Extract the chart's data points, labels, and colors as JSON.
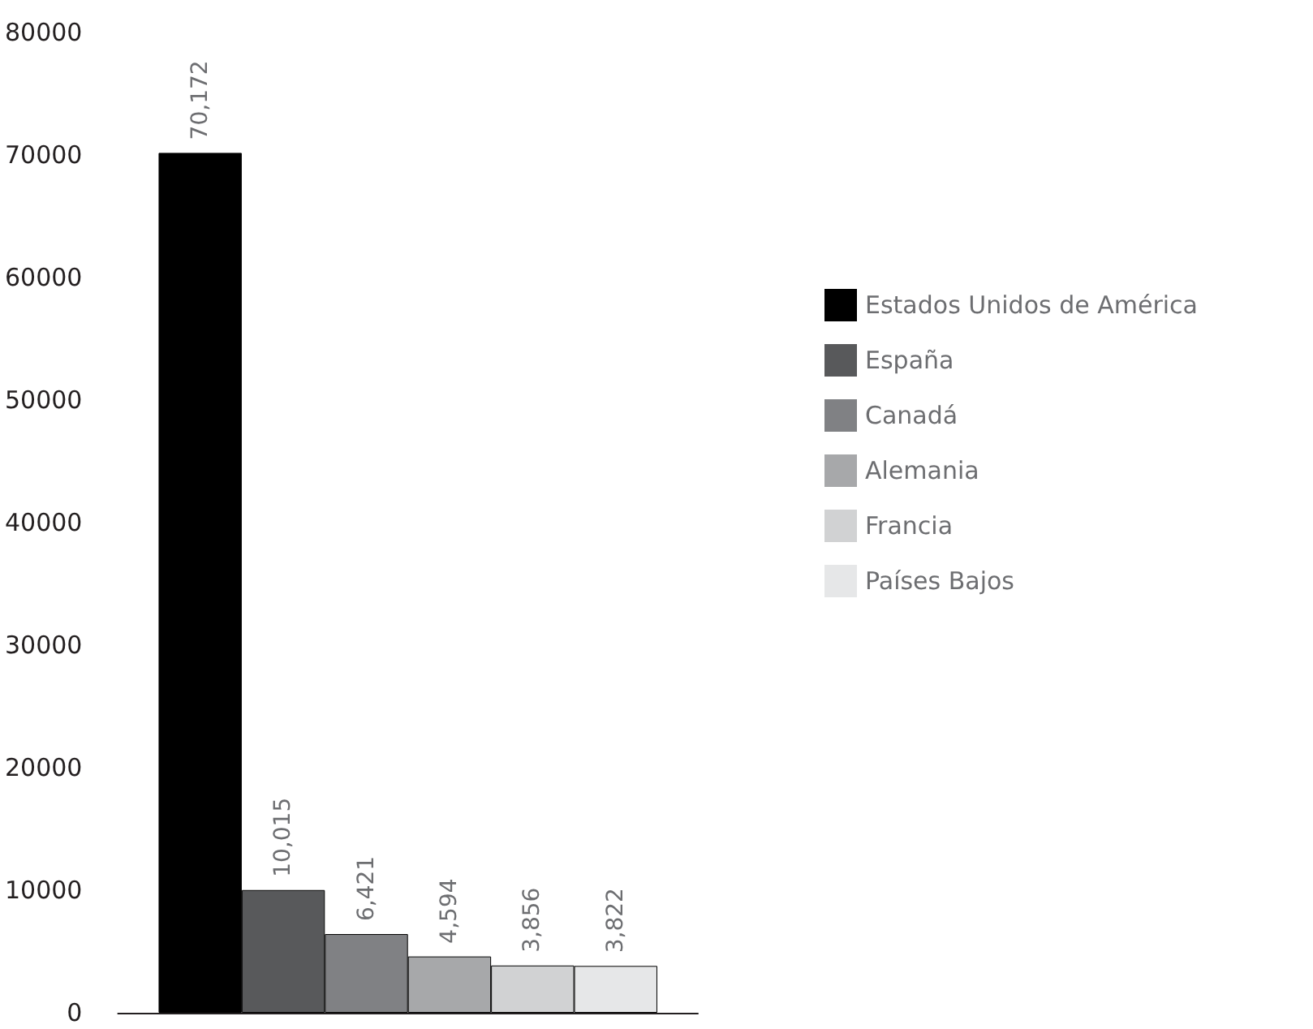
{
  "chart_data": {
    "type": "bar",
    "categories": [
      null
    ],
    "series": [
      {
        "name": "Estados Unidos de América",
        "color": "#000000",
        "values": [
          70172
        ],
        "value_labels": [
          "70,172"
        ]
      },
      {
        "name": "España",
        "color": "#58595b",
        "values": [
          10015
        ],
        "value_labels": [
          "10,015"
        ]
      },
      {
        "name": "Canadá",
        "color": "#808184",
        "values": [
          6421
        ],
        "value_labels": [
          "6,421"
        ]
      },
      {
        "name": "Alemania",
        "color": "#a7a8aa",
        "values": [
          4594
        ],
        "value_labels": [
          "4,594"
        ]
      },
      {
        "name": "Francia",
        "color": "#d1d2d3",
        "values": [
          3856
        ],
        "value_labels": [
          "3,856"
        ]
      },
      {
        "name": "Países Bajos",
        "color": "#e6e7e8",
        "values": [
          3822
        ],
        "value_labels": [
          "3,822"
        ]
      }
    ],
    "ylim": [
      0,
      80000
    ],
    "yticks": [
      0,
      10000,
      20000,
      30000,
      40000,
      50000,
      60000,
      70000,
      80000
    ],
    "grid": false,
    "legend": "right"
  }
}
